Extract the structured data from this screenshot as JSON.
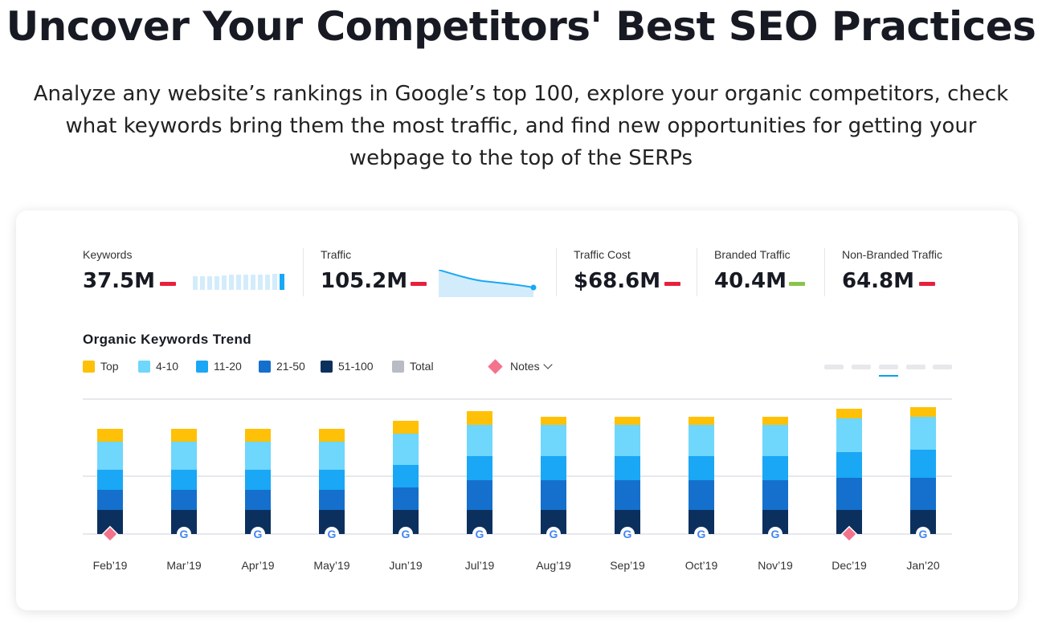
{
  "hero": {
    "title": "Uncover Your Competitors' Best SEO Practices",
    "subtitle": "Analyze any website’s rankings in Google’s top 100, explore your organic competitors, check what keywords bring them the most traffic, and find new opportunities for getting your webpage to the top of the SERPs"
  },
  "metrics": [
    {
      "label": "Keywords",
      "value": "37.5M",
      "trend": "down",
      "color": "#e8203c"
    },
    {
      "label": "Traffic",
      "value": "105.2M",
      "trend": "down",
      "color": "#e8203c"
    },
    {
      "label": "Traffic Cost",
      "value": "$68.6M",
      "trend": "down",
      "color": "#e8203c"
    },
    {
      "label": "Branded Traffic",
      "value": "40.4M",
      "trend": "up",
      "color": "#8bc34a"
    },
    {
      "label": "Non-Branded Traffic",
      "value": "64.8M",
      "trend": "down",
      "color": "#e8203c"
    }
  ],
  "trend": {
    "title": "Organic Keywords Trend",
    "legend": [
      {
        "label": "Top",
        "color": "#ffc107"
      },
      {
        "label": "4-10",
        "color": "#6fd6fc"
      },
      {
        "label": "11-20",
        "color": "#1aa7f5"
      },
      {
        "label": "21-50",
        "color": "#1470cc"
      },
      {
        "label": "51-100",
        "color": "#0c305e"
      },
      {
        "label": "Total",
        "color": "#b9bcc4"
      }
    ],
    "notes_label": "Notes"
  },
  "chart_data": {
    "type": "bar",
    "stacked": true,
    "categories": [
      "Feb’19",
      "Mar’19",
      "Apr’19",
      "May’19",
      "Jun’19",
      "Jul’19",
      "Aug’19",
      "Sep’19",
      "Oct’19",
      "Nov’19",
      "Dec’19",
      "Jan’20"
    ],
    "series": [
      {
        "name": "51-100",
        "color": "#0c305e",
        "values": [
          30,
          30,
          30,
          30,
          30,
          30,
          30,
          30,
          30,
          30,
          30,
          30
        ]
      },
      {
        "name": "21-50",
        "color": "#1470cc",
        "values": [
          25,
          25,
          25,
          25,
          28,
          37,
          37,
          37,
          37,
          37,
          40,
          40
        ]
      },
      {
        "name": "11-20",
        "color": "#1aa7f5",
        "values": [
          25,
          25,
          25,
          25,
          28,
          30,
          30,
          30,
          30,
          30,
          32,
          35
        ]
      },
      {
        "name": "4-10",
        "color": "#6fd6fc",
        "values": [
          35,
          35,
          35,
          35,
          39,
          39,
          39,
          39,
          39,
          39,
          42,
          41
        ]
      },
      {
        "name": "Top",
        "color": "#ffc107",
        "values": [
          16,
          16,
          16,
          16,
          16,
          17,
          10,
          10,
          10,
          10,
          12,
          12
        ]
      }
    ],
    "ylim": [
      0,
      170
    ],
    "markers": [
      "note",
      "google",
      "google",
      "google",
      "google",
      "google",
      "google",
      "google",
      "google",
      "google",
      "note",
      "google"
    ],
    "grid": true,
    "legend_position": "top-left"
  }
}
